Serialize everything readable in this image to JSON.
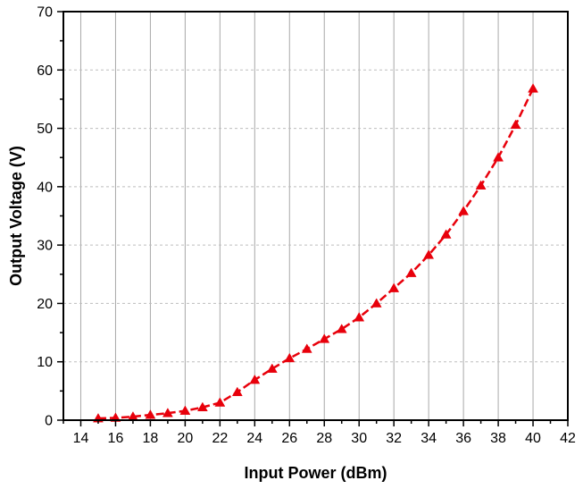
{
  "chart_data": {
    "type": "line",
    "title": "",
    "xlabel": "Input Power (dBm)",
    "ylabel": "Output Voltage (V)",
    "xlim": [
      13,
      42
    ],
    "ylim": [
      0,
      70
    ],
    "x_ticks": [
      14,
      16,
      18,
      20,
      22,
      24,
      26,
      28,
      30,
      32,
      34,
      36,
      38,
      40,
      42
    ],
    "y_ticks": [
      0,
      10,
      20,
      30,
      40,
      50,
      60,
      70
    ],
    "x_minor_step": 1,
    "y_minor_step": 5,
    "grid": {
      "x_major": true,
      "y_major": true,
      "y_style": "dashed"
    },
    "legend": "none",
    "series": [
      {
        "color": "#e8000b",
        "line_style": "dashed",
        "marker": "triangle",
        "x": [
          15,
          16,
          17,
          18,
          19,
          20,
          21,
          22,
          23,
          24,
          25,
          26,
          27,
          28,
          29,
          30,
          31,
          32,
          33,
          34,
          35,
          36,
          37,
          38,
          39,
          40
        ],
        "y": [
          0.3,
          0.4,
          0.6,
          0.9,
          1.2,
          1.6,
          2.2,
          3.0,
          4.8,
          6.9,
          8.8,
          10.6,
          12.2,
          13.9,
          15.6,
          17.6,
          20.0,
          22.6,
          25.2,
          28.3,
          31.8,
          35.8,
          40.2,
          45.0,
          50.6,
          56.8
        ]
      }
    ]
  }
}
